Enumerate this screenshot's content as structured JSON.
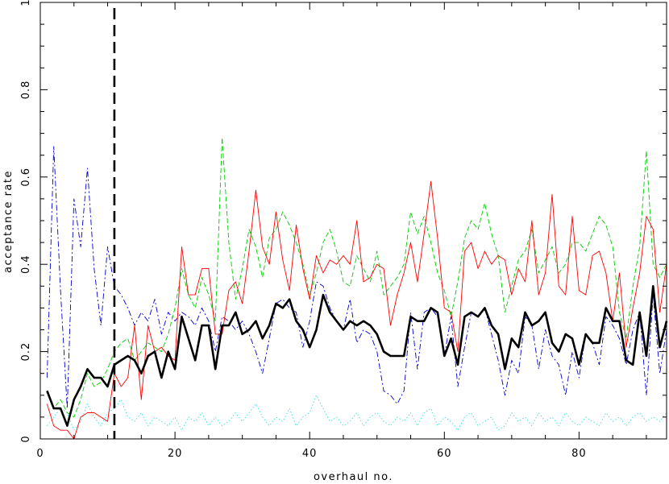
{
  "chart_data": {
    "type": "line",
    "title": "",
    "xlabel": "overhaul no.",
    "ylabel": "acceptance rate",
    "xlim": [
      0,
      93
    ],
    "ylim": [
      0,
      1
    ],
    "x_ticks": [
      0,
      20,
      40,
      60,
      80
    ],
    "y_ticks": [
      0,
      0.2,
      0.4,
      0.6,
      0.8,
      1
    ],
    "x_tick_labels": [
      "0",
      "20",
      "40",
      "60",
      "80"
    ],
    "y_tick_labels": [
      "0",
      "0.2",
      "0.4",
      "0.6",
      "0.8",
      "1"
    ],
    "grid": false,
    "legend": "none",
    "vertical_marker": {
      "x": 11,
      "style": "thick dashed",
      "color": "#000000"
    },
    "series": [
      {
        "color": "#000000",
        "style": "thick solid",
        "x": [
          1,
          2,
          3,
          4,
          5,
          6,
          7,
          8,
          9,
          10,
          11,
          12,
          13,
          14,
          15,
          16,
          17,
          18,
          19,
          20,
          21,
          22,
          23,
          24,
          25,
          26,
          27,
          28,
          29,
          30,
          31,
          32,
          33,
          34,
          35,
          36,
          37,
          38,
          39,
          40,
          41,
          42,
          43,
          44,
          45,
          46,
          47,
          48,
          49,
          50,
          51,
          52,
          53,
          54,
          55,
          56,
          57,
          58,
          59,
          60,
          61,
          62,
          63,
          64,
          65,
          66,
          67,
          68,
          69,
          70,
          71,
          72,
          73,
          74,
          75,
          76,
          77,
          78,
          79,
          80,
          81,
          82,
          83,
          84,
          85,
          86,
          87,
          88,
          89,
          90,
          91,
          92,
          93
        ],
        "y": [
          0.11,
          0.07,
          0.07,
          0.03,
          0.09,
          0.12,
          0.16,
          0.14,
          0.14,
          0.12,
          0.17,
          0.18,
          0.19,
          0.18,
          0.15,
          0.19,
          0.2,
          0.14,
          0.2,
          0.16,
          0.28,
          0.23,
          0.18,
          0.26,
          0.26,
          0.16,
          0.26,
          0.26,
          0.29,
          0.24,
          0.25,
          0.27,
          0.23,
          0.26,
          0.31,
          0.3,
          0.32,
          0.27,
          0.25,
          0.21,
          0.25,
          0.33,
          0.29,
          0.27,
          0.25,
          0.27,
          0.26,
          0.27,
          0.26,
          0.24,
          0.2,
          0.19,
          0.19,
          0.19,
          0.28,
          0.27,
          0.27,
          0.3,
          0.29,
          0.19,
          0.23,
          0.17,
          0.28,
          0.29,
          0.28,
          0.3,
          0.26,
          0.24,
          0.16,
          0.23,
          0.21,
          0.29,
          0.26,
          0.27,
          0.29,
          0.22,
          0.2,
          0.24,
          0.23,
          0.17,
          0.24,
          0.22,
          0.22,
          0.3,
          0.27,
          0.27,
          0.18,
          0.17,
          0.29,
          0.19,
          0.35,
          0.21,
          0.27
        ]
      },
      {
        "color": "#ff0000",
        "style": "thin solid",
        "x": [
          1,
          2,
          3,
          4,
          5,
          6,
          7,
          8,
          9,
          10,
          11,
          12,
          13,
          14,
          15,
          16,
          17,
          18,
          19,
          20,
          21,
          22,
          23,
          24,
          25,
          26,
          27,
          28,
          29,
          30,
          31,
          32,
          33,
          34,
          35,
          36,
          37,
          38,
          39,
          40,
          41,
          42,
          43,
          44,
          45,
          46,
          47,
          48,
          49,
          50,
          51,
          52,
          53,
          54,
          55,
          56,
          57,
          58,
          59,
          60,
          61,
          62,
          63,
          64,
          65,
          66,
          67,
          68,
          69,
          70,
          71,
          72,
          73,
          74,
          75,
          76,
          77,
          78,
          79,
          80,
          81,
          82,
          83,
          84,
          85,
          86,
          87,
          88,
          89,
          90,
          91,
          92,
          93
        ],
        "y": [
          0.08,
          0.03,
          0.02,
          0.02,
          0.0,
          0.05,
          0.06,
          0.06,
          0.05,
          0.04,
          0.15,
          0.12,
          0.14,
          0.26,
          0.09,
          0.26,
          0.2,
          0.21,
          0.19,
          0.18,
          0.44,
          0.33,
          0.33,
          0.39,
          0.39,
          0.24,
          0.24,
          0.34,
          0.36,
          0.31,
          0.43,
          0.57,
          0.44,
          0.4,
          0.52,
          0.41,
          0.34,
          0.49,
          0.39,
          0.32,
          0.42,
          0.38,
          0.41,
          0.4,
          0.42,
          0.4,
          0.5,
          0.36,
          0.37,
          0.4,
          0.39,
          0.26,
          0.33,
          0.38,
          0.45,
          0.36,
          0.47,
          0.59,
          0.46,
          0.3,
          0.29,
          0.2,
          0.43,
          0.45,
          0.39,
          0.43,
          0.4,
          0.42,
          0.41,
          0.33,
          0.39,
          0.36,
          0.5,
          0.33,
          0.38,
          0.56,
          0.35,
          0.33,
          0.51,
          0.34,
          0.33,
          0.42,
          0.43,
          0.38,
          0.27,
          0.38,
          0.21,
          0.3,
          0.38,
          0.51,
          0.48,
          0.29,
          0.4
        ]
      },
      {
        "color": "#00cc00",
        "style": "thin dashed",
        "x": [
          1,
          2,
          3,
          4,
          5,
          6,
          7,
          8,
          9,
          10,
          11,
          12,
          13,
          14,
          15,
          16,
          17,
          18,
          19,
          20,
          21,
          22,
          23,
          24,
          25,
          26,
          27,
          28,
          29,
          30,
          31,
          32,
          33,
          34,
          35,
          36,
          37,
          38,
          39,
          40,
          41,
          42,
          43,
          44,
          45,
          46,
          47,
          48,
          49,
          50,
          51,
          52,
          53,
          54,
          55,
          56,
          57,
          58,
          59,
          60,
          61,
          62,
          63,
          64,
          65,
          66,
          67,
          68,
          69,
          70,
          71,
          72,
          73,
          74,
          75,
          76,
          77,
          78,
          79,
          80,
          81,
          82,
          83,
          84,
          85,
          86,
          87,
          88,
          89,
          90,
          91,
          92,
          93
        ],
        "y": [
          0.11,
          0.07,
          0.09,
          0.06,
          0.05,
          0.09,
          0.15,
          0.12,
          0.13,
          0.16,
          0.2,
          0.22,
          0.23,
          0.18,
          0.2,
          0.22,
          0.21,
          0.2,
          0.24,
          0.3,
          0.39,
          0.33,
          0.3,
          0.37,
          0.33,
          0.27,
          0.69,
          0.45,
          0.32,
          0.39,
          0.48,
          0.44,
          0.37,
          0.46,
          0.48,
          0.52,
          0.49,
          0.45,
          0.4,
          0.33,
          0.38,
          0.45,
          0.48,
          0.43,
          0.36,
          0.35,
          0.42,
          0.39,
          0.36,
          0.43,
          0.33,
          0.35,
          0.37,
          0.4,
          0.52,
          0.47,
          0.51,
          0.45,
          0.38,
          0.34,
          0.28,
          0.36,
          0.46,
          0.5,
          0.48,
          0.54,
          0.47,
          0.42,
          0.29,
          0.35,
          0.41,
          0.43,
          0.48,
          0.38,
          0.41,
          0.44,
          0.38,
          0.4,
          0.45,
          0.45,
          0.43,
          0.47,
          0.51,
          0.49,
          0.44,
          0.29,
          0.23,
          0.35,
          0.44,
          0.66,
          0.4,
          0.37,
          0.4
        ]
      },
      {
        "color": "#0000cc",
        "style": "thin dash-dot",
        "x": [
          1,
          2,
          3,
          4,
          5,
          6,
          7,
          8,
          9,
          10,
          11,
          12,
          13,
          14,
          15,
          16,
          17,
          18,
          19,
          20,
          21,
          22,
          23,
          24,
          25,
          26,
          27,
          28,
          29,
          30,
          31,
          32,
          33,
          34,
          35,
          36,
          37,
          38,
          39,
          40,
          41,
          42,
          43,
          44,
          45,
          46,
          47,
          48,
          49,
          50,
          51,
          52,
          53,
          54,
          55,
          56,
          57,
          58,
          59,
          60,
          61,
          62,
          63,
          64,
          65,
          66,
          67,
          68,
          69,
          70,
          71,
          72,
          73,
          74,
          75,
          76,
          77,
          78,
          79,
          80,
          81,
          82,
          83,
          84,
          85,
          86,
          87,
          88,
          89,
          90,
          91,
          92,
          93
        ],
        "y": [
          0.14,
          0.67,
          0.34,
          0.07,
          0.55,
          0.44,
          0.62,
          0.39,
          0.26,
          0.44,
          0.35,
          0.33,
          0.3,
          0.26,
          0.29,
          0.27,
          0.32,
          0.24,
          0.29,
          0.27,
          0.29,
          0.28,
          0.26,
          0.3,
          0.27,
          0.2,
          0.28,
          0.27,
          0.25,
          0.27,
          0.24,
          0.2,
          0.15,
          0.23,
          0.31,
          0.32,
          0.3,
          0.29,
          0.21,
          0.27,
          0.36,
          0.35,
          0.3,
          0.27,
          0.25,
          0.32,
          0.22,
          0.25,
          0.24,
          0.2,
          0.11,
          0.1,
          0.08,
          0.11,
          0.29,
          0.16,
          0.29,
          0.3,
          0.28,
          0.19,
          0.28,
          0.12,
          0.21,
          0.29,
          0.28,
          0.3,
          0.24,
          0.18,
          0.1,
          0.18,
          0.15,
          0.28,
          0.26,
          0.16,
          0.25,
          0.19,
          0.17,
          0.1,
          0.2,
          0.14,
          0.24,
          0.22,
          0.17,
          0.28,
          0.26,
          0.23,
          0.17,
          0.25,
          0.29,
          0.1,
          0.33,
          0.15,
          0.25
        ]
      },
      {
        "color": "#33dddd",
        "style": "thin dotted",
        "x": [
          1,
          2,
          3,
          4,
          5,
          6,
          7,
          8,
          9,
          10,
          11,
          12,
          13,
          14,
          15,
          16,
          17,
          18,
          19,
          20,
          21,
          22,
          23,
          24,
          25,
          26,
          27,
          28,
          29,
          30,
          31,
          32,
          33,
          34,
          35,
          36,
          37,
          38,
          39,
          40,
          41,
          42,
          43,
          44,
          45,
          46,
          47,
          48,
          49,
          50,
          51,
          52,
          53,
          54,
          55,
          56,
          57,
          58,
          59,
          60,
          61,
          62,
          63,
          64,
          65,
          66,
          67,
          68,
          69,
          70,
          71,
          72,
          73,
          74,
          75,
          76,
          77,
          78,
          79,
          80,
          81,
          82,
          83,
          84,
          85,
          86,
          87,
          88,
          89,
          90,
          91,
          92,
          93
        ],
        "y": [
          0.03,
          0.05,
          0.07,
          0.06,
          0.02,
          0.04,
          0.08,
          0.05,
          0.03,
          0.06,
          0.07,
          0.09,
          0.05,
          0.04,
          0.06,
          0.03,
          0.05,
          0.04,
          0.03,
          0.05,
          0.02,
          0.05,
          0.04,
          0.06,
          0.03,
          0.05,
          0.03,
          0.04,
          0.06,
          0.04,
          0.06,
          0.08,
          0.05,
          0.03,
          0.05,
          0.04,
          0.07,
          0.03,
          0.05,
          0.06,
          0.1,
          0.07,
          0.04,
          0.05,
          0.03,
          0.04,
          0.06,
          0.03,
          0.05,
          0.06,
          0.04,
          0.03,
          0.05,
          0.04,
          0.06,
          0.03,
          0.06,
          0.07,
          0.03,
          0.05,
          0.04,
          0.02,
          0.05,
          0.06,
          0.03,
          0.04,
          0.05,
          0.02,
          0.03,
          0.06,
          0.04,
          0.05,
          0.03,
          0.06,
          0.04,
          0.05,
          0.03,
          0.06,
          0.04,
          0.03,
          0.05,
          0.04,
          0.03,
          0.06,
          0.04,
          0.05,
          0.03,
          0.05,
          0.06,
          0.04,
          0.05,
          0.04,
          0.06
        ]
      }
    ]
  }
}
